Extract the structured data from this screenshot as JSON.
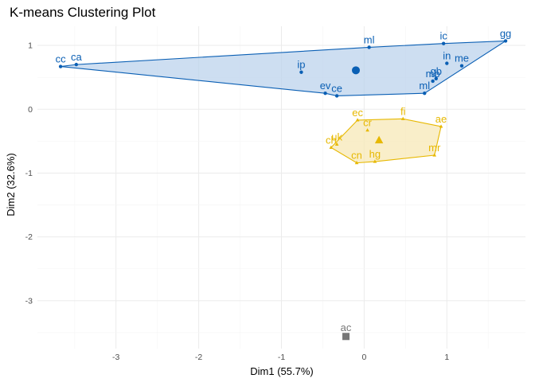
{
  "chart_data": {
    "type": "scatter",
    "title": "K-means Clustering Plot",
    "xlabel": "Dim1 (55.7%)",
    "ylabel": "Dim2 (32.6%)",
    "xlim": [
      -3.95,
      1.95
    ],
    "ylim": [
      -3.75,
      1.3
    ],
    "x_ticks": [
      -3,
      -2,
      -1,
      0,
      1
    ],
    "y_ticks": [
      -3,
      -2,
      -1,
      0,
      1
    ],
    "grid": true,
    "legend": "none",
    "clusters": [
      {
        "color": "#0a5fb4",
        "fill": "#bcd3ec",
        "marker": "circle",
        "centroid": [
          -0.1,
          0.61
        ],
        "hull": [
          "cc",
          "ca",
          "ml",
          "ic",
          "gg",
          "ml2",
          "ce",
          "ev"
        ],
        "points": [
          {
            "id": "cc",
            "label": "cc",
            "x": -3.67,
            "y": 0.67
          },
          {
            "id": "ca",
            "label": "ca",
            "x": -3.48,
            "y": 0.7
          },
          {
            "id": "ip",
            "label": "ip",
            "x": -0.76,
            "y": 0.58
          },
          {
            "id": "ml",
            "label": "ml",
            "x": 0.06,
            "y": 0.97
          },
          {
            "id": "ic",
            "label": "ic",
            "x": 0.96,
            "y": 1.03
          },
          {
            "id": "gg",
            "label": "gg",
            "x": 1.71,
            "y": 1.07
          },
          {
            "id": "in",
            "label": "in",
            "x": 1.0,
            "y": 0.72
          },
          {
            "id": "me",
            "label": "me",
            "x": 1.18,
            "y": 0.68
          },
          {
            "id": "gb",
            "label": "gb",
            "x": 0.87,
            "y": 0.48
          },
          {
            "id": "mb",
            "label": "mb",
            "x": 0.83,
            "y": 0.44
          },
          {
            "id": "ml2",
            "label": "ml",
            "x": 0.73,
            "y": 0.25
          },
          {
            "id": "ev",
            "label": "ev",
            "x": -0.47,
            "y": 0.25
          },
          {
            "id": "ce",
            "label": "ce",
            "x": -0.33,
            "y": 0.21
          }
        ]
      },
      {
        "color": "#e7b800",
        "fill": "#f7e8b7",
        "marker": "triangle",
        "centroid": [
          0.18,
          -0.49
        ],
        "hull": [
          "ec",
          "fi",
          "ae",
          "mr",
          "hg",
          "cn",
          "ch"
        ],
        "points": [
          {
            "id": "ec",
            "label": "ec",
            "x": -0.08,
            "y": -0.17
          },
          {
            "id": "cr",
            "label": "cr",
            "x": 0.04,
            "y": -0.33
          },
          {
            "id": "fi",
            "label": "fi",
            "x": 0.47,
            "y": -0.15
          },
          {
            "id": "ae",
            "label": "ae",
            "x": 0.93,
            "y": -0.27
          },
          {
            "id": "ch",
            "label": "ch",
            "x": -0.4,
            "y": -0.6
          },
          {
            "id": "uk",
            "label": "uk",
            "x": -0.33,
            "y": -0.55
          },
          {
            "id": "mr",
            "label": "mr",
            "x": 0.85,
            "y": -0.72
          },
          {
            "id": "cn",
            "label": "cn",
            "x": -0.09,
            "y": -0.84
          },
          {
            "id": "hg",
            "label": "hg",
            "x": 0.13,
            "y": -0.82
          }
        ]
      },
      {
        "color": "#777777",
        "fill": "#cccccc",
        "marker": "square",
        "centroid": [
          -0.22,
          -3.56
        ],
        "hull": [],
        "points": [
          {
            "id": "ac",
            "label": "ac",
            "x": -0.22,
            "y": -3.56
          }
        ]
      }
    ]
  }
}
